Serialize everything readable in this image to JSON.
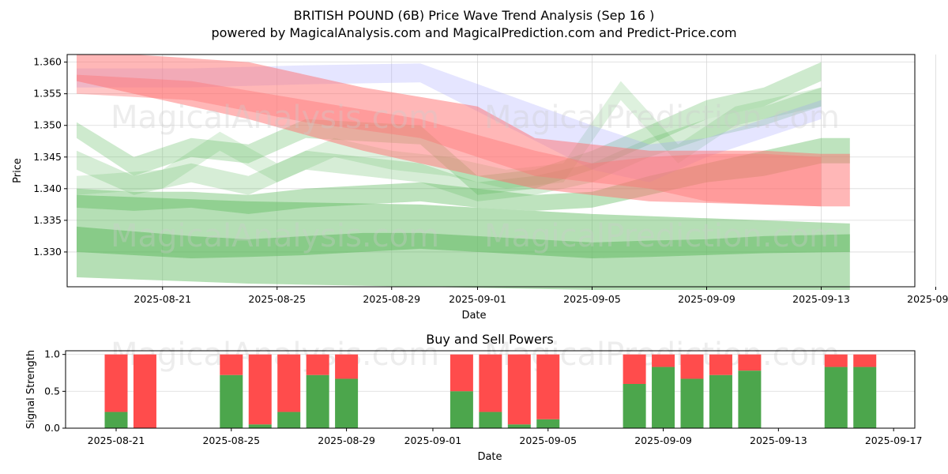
{
  "chart_data": [
    {
      "type": "area",
      "title_line1": "BRITISH POUND (6B) Price Wave Trend Analysis (Sep 16 )",
      "title_line2": "powered by MagicalAnalysis.com and MagicalPrediction.com and Predict-Price.com",
      "xlabel": "Date",
      "ylabel": "Price",
      "x_tick_labels": [
        "2025-08-21",
        "2025-08-25",
        "2025-08-29",
        "2025-09-01",
        "2025-09-05",
        "2025-09-09",
        "2025-09-13",
        "2025-09-17"
      ],
      "y_tick_labels": [
        "1.330",
        "1.335",
        "1.340",
        "1.345",
        "1.350",
        "1.355",
        "1.360"
      ],
      "ylim": [
        1.3245,
        1.3612
      ],
      "grid": true,
      "watermarks": [
        "MagicalAnalysis.com",
        "MagicalPrediction.com"
      ],
      "colors": {
        "red": "#ff7070",
        "green": "#5cb85c",
        "blue": "#9999ff"
      },
      "bands": [
        {
          "color": "green",
          "opacity": 0.45,
          "x": [
            0,
            6,
            12,
            18,
            24,
            27
          ],
          "upper": [
            1.339,
            1.338,
            1.3375,
            1.336,
            1.335,
            1.3345
          ],
          "lower": [
            1.326,
            1.325,
            1.3245,
            1.324,
            1.324,
            1.324
          ]
        },
        {
          "color": "green",
          "opacity": 0.5,
          "x": [
            0,
            4,
            6,
            8,
            10,
            12,
            14,
            16,
            18,
            20,
            22,
            24,
            27
          ],
          "upper": [
            1.334,
            1.3325,
            1.332,
            1.3325,
            1.333,
            1.333,
            1.3325,
            1.332,
            1.3315,
            1.3318,
            1.332,
            1.3325,
            1.3328
          ],
          "lower": [
            1.33,
            1.329,
            1.3292,
            1.3295,
            1.33,
            1.3305,
            1.33,
            1.3295,
            1.329,
            1.3292,
            1.3295,
            1.3298,
            1.33
          ]
        },
        {
          "color": "green",
          "opacity": 0.4,
          "x": [
            0,
            2,
            4,
            6,
            8,
            10,
            12,
            14,
            16,
            18,
            20,
            22,
            24,
            26,
            27
          ],
          "upper": [
            1.34,
            1.3395,
            1.3395,
            1.339,
            1.34,
            1.3405,
            1.341,
            1.34,
            1.339,
            1.3395,
            1.342,
            1.344,
            1.346,
            1.348,
            1.348
          ],
          "lower": [
            1.337,
            1.3365,
            1.337,
            1.336,
            1.337,
            1.3375,
            1.338,
            1.337,
            1.3365,
            1.337,
            1.339,
            1.341,
            1.342,
            1.344,
            1.344
          ]
        },
        {
          "color": "green",
          "opacity": 0.3,
          "x": [
            0,
            2,
            4,
            6,
            8,
            10,
            12,
            14,
            16,
            18,
            20,
            22,
            24,
            26
          ],
          "upper": [
            1.3505,
            1.345,
            1.348,
            1.347,
            1.351,
            1.3505,
            1.35,
            1.342,
            1.343,
            1.346,
            1.35,
            1.354,
            1.356,
            1.36
          ],
          "lower": [
            1.348,
            1.342,
            1.345,
            1.344,
            1.348,
            1.3475,
            1.347,
            1.339,
            1.34,
            1.343,
            1.347,
            1.351,
            1.353,
            1.357
          ]
        },
        {
          "color": "green",
          "opacity": 0.25,
          "x": [
            0,
            2,
            4,
            6,
            8,
            10,
            12,
            14,
            16,
            18,
            20,
            22,
            24,
            26
          ],
          "upper": [
            1.346,
            1.342,
            1.344,
            1.342,
            1.346,
            1.345,
            1.344,
            1.341,
            1.342,
            1.344,
            1.348,
            1.351,
            1.353,
            1.356
          ],
          "lower": [
            1.343,
            1.339,
            1.341,
            1.339,
            1.343,
            1.342,
            1.341,
            1.338,
            1.339,
            1.341,
            1.345,
            1.348,
            1.35,
            1.353
          ]
        },
        {
          "color": "green",
          "opacity": 0.2,
          "x": [
            0,
            3,
            5,
            7,
            9,
            11,
            13,
            15,
            17,
            19,
            21,
            23,
            25,
            26
          ],
          "upper": [
            1.342,
            1.343,
            1.349,
            1.344,
            1.348,
            1.346,
            1.345,
            1.343,
            1.344,
            1.357,
            1.347,
            1.353,
            1.355,
            1.356
          ],
          "lower": [
            1.339,
            1.34,
            1.346,
            1.341,
            1.345,
            1.343,
            1.342,
            1.34,
            1.341,
            1.354,
            1.344,
            1.35,
            1.352,
            1.353
          ]
        },
        {
          "color": "blue",
          "opacity": 0.25,
          "x": [
            0,
            4,
            8,
            12,
            18,
            20,
            22,
            24,
            26
          ],
          "upper": [
            1.359,
            1.359,
            1.3595,
            1.3598,
            1.35,
            1.347,
            1.348,
            1.351,
            1.354
          ],
          "lower": [
            1.356,
            1.356,
            1.3565,
            1.3568,
            1.343,
            1.341,
            1.345,
            1.348,
            1.351
          ]
        },
        {
          "color": "red",
          "opacity": 0.5,
          "x": [
            0,
            2,
            6,
            10,
            14,
            16,
            20,
            24,
            26,
            27
          ],
          "upper": [
            1.3612,
            1.3612,
            1.36,
            1.356,
            1.353,
            1.348,
            1.346,
            1.346,
            1.3455,
            1.3455
          ],
          "lower": [
            1.357,
            1.355,
            1.351,
            1.346,
            1.342,
            1.34,
            1.338,
            1.3375,
            1.3372,
            1.3372
          ]
        },
        {
          "color": "red",
          "opacity": 0.4,
          "x": [
            0,
            4,
            8,
            12,
            16,
            18,
            20,
            22,
            24,
            26
          ],
          "upper": [
            1.358,
            1.357,
            1.354,
            1.351,
            1.346,
            1.344,
            1.345,
            1.3455,
            1.3455,
            1.345
          ],
          "lower": [
            1.355,
            1.354,
            1.3505,
            1.348,
            1.342,
            1.341,
            1.34,
            1.338,
            1.3375,
            1.3372
          ]
        }
      ]
    },
    {
      "type": "bar",
      "title": "Buy and Sell Powers",
      "xlabel": "Date",
      "ylabel": "Signal Strength",
      "ylim": [
        0,
        1.05
      ],
      "y_tick_labels": [
        "0.0",
        "0.5",
        "1.0"
      ],
      "x_tick_labels": [
        "2025-08-21",
        "2025-08-25",
        "2025-08-29",
        "2025-09-01",
        "2025-09-05",
        "2025-09-09",
        "2025-09-13",
        "2025-09-17"
      ],
      "colors": {
        "buy": "#4ca64c",
        "sell": "#ff4c4c"
      },
      "days": [
        0,
        1,
        4,
        5,
        6,
        7,
        8,
        12,
        13,
        14,
        15,
        18,
        19,
        20,
        21,
        22,
        25,
        26
      ],
      "buy": [
        0.22,
        0.0,
        0.72,
        0.05,
        0.22,
        0.72,
        0.67,
        0.5,
        0.22,
        0.05,
        0.12,
        0.6,
        0.83,
        0.67,
        0.72,
        0.78,
        0.83,
        0.83
      ]
    }
  ]
}
